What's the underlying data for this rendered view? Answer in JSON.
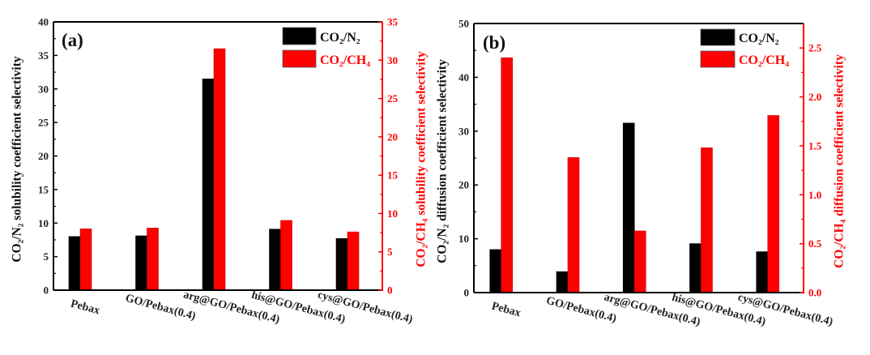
{
  "colors": {
    "series1": "#000000",
    "series2": "#ff0000",
    "axis_left": "#000000",
    "axis_right": "#ff0000"
  },
  "chart_data": [
    {
      "type": "bar",
      "panel_label": "(a)",
      "categories": [
        "Pebax",
        "GO/Pebax(0.4)",
        "arg@GO/Pebax(0.4)",
        "his@GO/Pebax(0.4)",
        "cys@GO/Pebax(0.4)"
      ],
      "series": [
        {
          "name": "CO₂/N₂",
          "axis": "left",
          "values": [
            8.0,
            8.1,
            31.5,
            9.1,
            7.7
          ]
        },
        {
          "name": "CO₂/CH₄",
          "axis": "right",
          "values": [
            8.0,
            8.1,
            31.5,
            9.1,
            7.6
          ]
        }
      ],
      "ylabel": "CO₂/N₂ solubility  coefficient selectivity",
      "ylabel_right": "CO₂/CH₄ solubility coefficient selectivity",
      "ylim": [
        0,
        40
      ],
      "ylim_right": [
        0,
        35
      ],
      "yticks": [
        "0",
        "5",
        "10",
        "15",
        "20",
        "25",
        "30",
        "35",
        "40"
      ],
      "yticks_right": [
        "0",
        "5",
        "10",
        "15",
        "20",
        "25",
        "30",
        "35"
      ],
      "legend_position": "top-right",
      "grid": false
    },
    {
      "type": "bar",
      "panel_label": "(b)",
      "categories": [
        "Pebax",
        "GO/Pebax(0.4)",
        "arg@GO/Pebax(0.4)",
        "his@GO/Pebax(0.4)",
        "cys@GO/Pebax(0.4)"
      ],
      "series": [
        {
          "name": "CO₂/N₂",
          "axis": "left",
          "values": [
            8.0,
            3.9,
            31.5,
            9.1,
            7.6
          ]
        },
        {
          "name": "CO₂/CH₄",
          "axis": "right",
          "values": [
            2.4,
            1.38,
            0.63,
            1.48,
            1.81
          ]
        }
      ],
      "ylabel": "CO₂/N₂ diffusion coefficient selectivity",
      "ylabel_right": "CO₂/CH₄ diffusion coefficient selectivity",
      "ylim": [
        0,
        50
      ],
      "ylim_right": [
        0,
        2.75
      ],
      "yticks": [
        "0",
        "10",
        "20",
        "30",
        "40",
        "50"
      ],
      "yticks_right": [
        "0.0",
        "0.5",
        "1.0",
        "1.5",
        "2.0",
        "2.5"
      ],
      "legend_position": "top-right",
      "grid": false
    }
  ]
}
